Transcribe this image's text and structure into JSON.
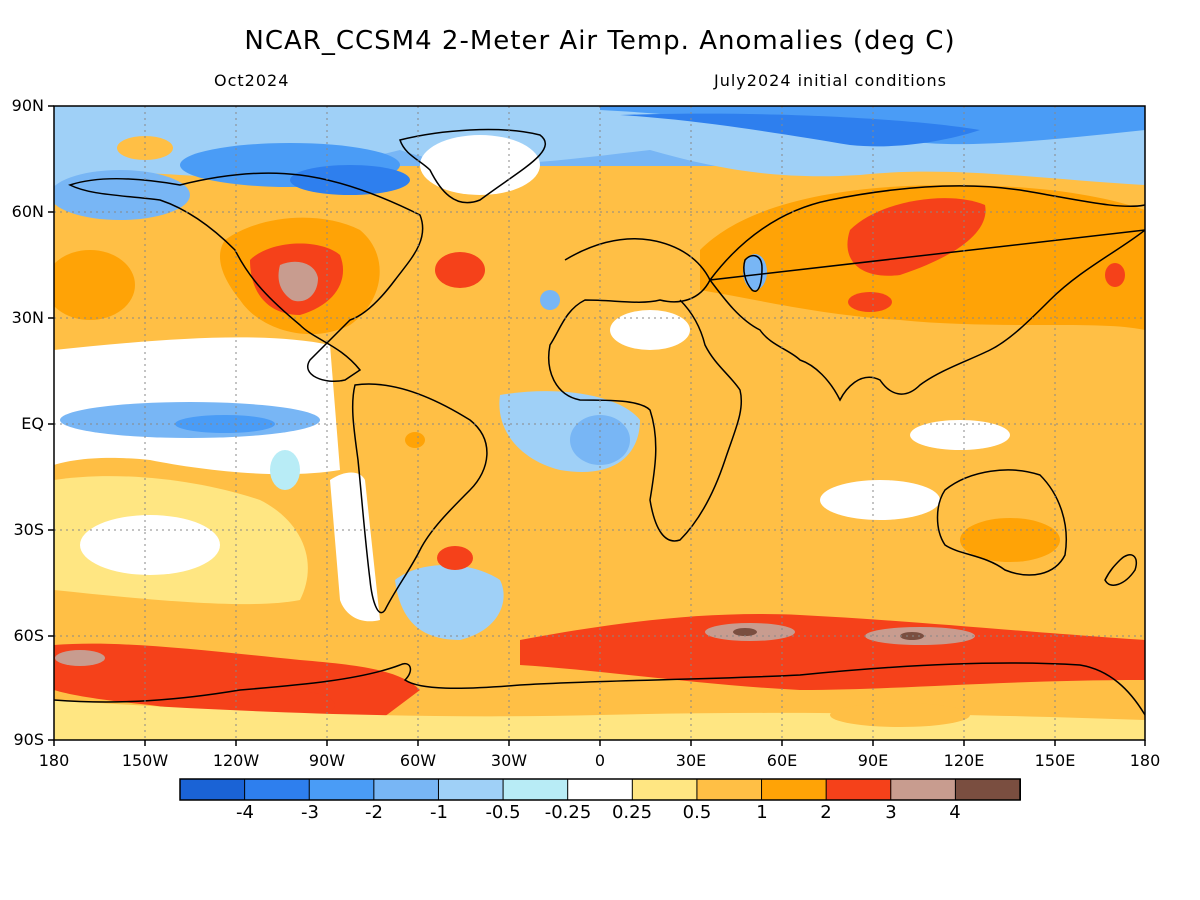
{
  "header": {
    "title": "NCAR_CCSM4 2-Meter Air Temp. Anomalies (deg C)",
    "valid_month": "Oct2024",
    "init": "July2024 initial conditions"
  },
  "axes": {
    "lat_ticks": [
      "90N",
      "60N",
      "30N",
      "EQ",
      "30S",
      "60S",
      "90S"
    ],
    "lon_ticks": [
      "180",
      "150W",
      "120W",
      "90W",
      "60W",
      "30W",
      "0",
      "30E",
      "60E",
      "90E",
      "120E",
      "150E",
      "180"
    ]
  },
  "colorbar": {
    "colors": [
      "#1a63d6",
      "#2e7fee",
      "#4a9cf6",
      "#78b6f5",
      "#9fd0f7",
      "#b8ecf6",
      "#ffffff",
      "#ffe682",
      "#ffbf45",
      "#ffa306",
      "#f5411a",
      "#c89c8f",
      "#7a4e40"
    ],
    "labels": [
      "-4",
      "-3",
      "-2",
      "-1",
      "-0.5",
      "-0.25",
      "0.25",
      "0.5",
      "1",
      "2",
      "3",
      "4"
    ]
  }
}
